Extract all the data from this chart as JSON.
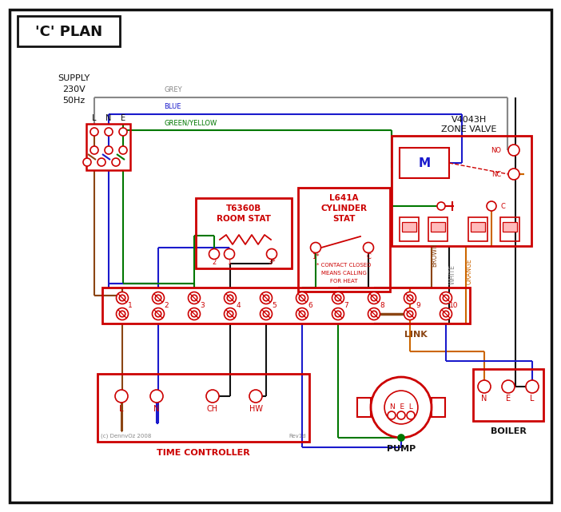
{
  "bg": "#ffffff",
  "RED": "#cc0000",
  "BLUE": "#1a1acc",
  "GREEN": "#007700",
  "BROWN": "#8B4513",
  "GREY": "#888888",
  "BLACK": "#111111",
  "ORANGE": "#cc6600",
  "PINK": "#ffbbbb",
  "title": "'C' PLAN",
  "supply_lines": [
    "SUPPLY",
    "230V",
    "50Hz"
  ],
  "lne": [
    "L",
    "N",
    "E"
  ],
  "zv_title": [
    "V4043H",
    "ZONE VALVE"
  ],
  "rs_title": [
    "T6360B",
    "ROOM STAT"
  ],
  "cs_title": [
    "L641A",
    "CYLINDER",
    "STAT"
  ],
  "tc_title": "TIME CONTROLLER",
  "tc_labels": [
    "L",
    "N",
    "CH",
    "HW"
  ],
  "pump_label": "PUMP",
  "boiler_label": "BOILER",
  "link_label": "LINK",
  "copyright": "(c) DennvOz 2008",
  "rev": "Rev1d",
  "contact_lines": [
    "* CONTACT CLOSED",
    "MEANS CALLING",
    "FOR HEAT"
  ],
  "wire_labels": {
    "GREY": "GREY",
    "BLUE": "BLUE",
    "GY": "GREEN/YELLOW",
    "BROWN": "BROWN",
    "WHITE": "WHITE",
    "ORANGE": "ORANGE"
  }
}
